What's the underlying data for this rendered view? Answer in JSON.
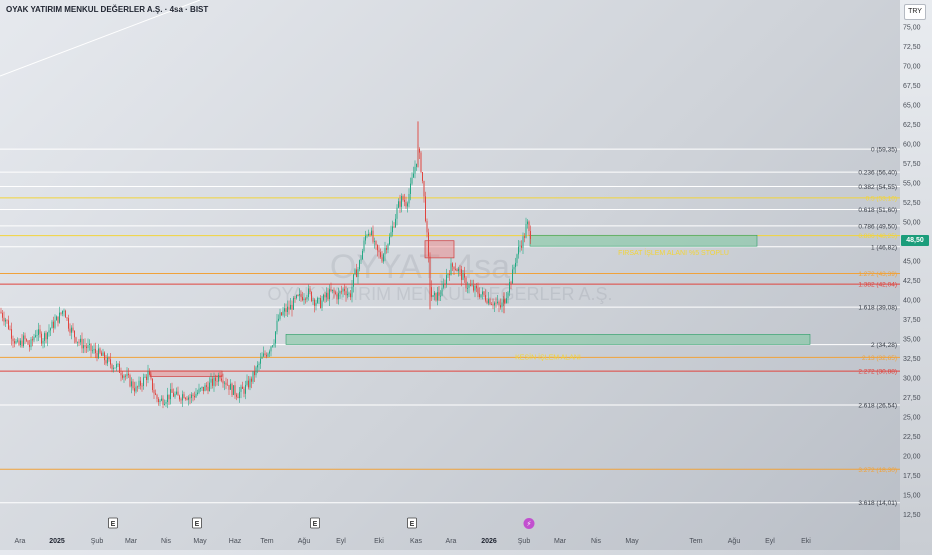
{
  "header": {
    "title": "OYAK YATIRIM MENKUL DEĞERLER A.Ş. · 4sa · BIST",
    "currency": "TRY"
  },
  "watermark": {
    "ticker": "OYYAT, 4sa",
    "company": "OYAK YATIRIM MENKUL DEĞERLER A.Ş."
  },
  "chart_data": {
    "type": "candlestick",
    "ylim": [
      12.5,
      77.5
    ],
    "y_ticks": [
      "75,00",
      "72,50",
      "70,00",
      "67,50",
      "65,00",
      "62,50",
      "60,00",
      "57,50",
      "55,00",
      "52,50",
      "50,00",
      "47,50",
      "45,00",
      "42,50",
      "40,00",
      "37,50",
      "35,00",
      "32,50",
      "30,00",
      "27,50",
      "25,00",
      "22,50",
      "20,00",
      "17,50",
      "15,00",
      "12,50"
    ],
    "x_ticks": [
      {
        "label": "Ara",
        "bold": false
      },
      {
        "label": "2025",
        "bold": true
      },
      {
        "label": "Şub",
        "bold": false
      },
      {
        "label": "Mar",
        "bold": false
      },
      {
        "label": "Nis",
        "bold": false
      },
      {
        "label": "May",
        "bold": false
      },
      {
        "label": "Haz",
        "bold": false
      },
      {
        "label": "Tem",
        "bold": false
      },
      {
        "label": "Ağu",
        "bold": false
      },
      {
        "label": "Eyl",
        "bold": false
      },
      {
        "label": "Eki",
        "bold": false
      },
      {
        "label": "Kas",
        "bold": false
      },
      {
        "label": "Ara",
        "bold": false
      },
      {
        "label": "2026",
        "bold": true
      },
      {
        "label": "Şub",
        "bold": false
      },
      {
        "label": "Mar",
        "bold": false
      },
      {
        "label": "Nis",
        "bold": false
      },
      {
        "label": "May",
        "bold": false
      },
      {
        "label": "Tem",
        "bold": false
      },
      {
        "label": "Ağu",
        "bold": false
      },
      {
        "label": "Eyl",
        "bold": false
      },
      {
        "label": "Eki",
        "bold": false
      }
    ],
    "last_price": "48,50",
    "price_path": [
      [
        0,
        38.5
      ],
      [
        6,
        37.5
      ],
      [
        12,
        35.5
      ],
      [
        18,
        34
      ],
      [
        24,
        35
      ],
      [
        30,
        34
      ],
      [
        36,
        36
      ],
      [
        42,
        35
      ],
      [
        48,
        36
      ],
      [
        54,
        37
      ],
      [
        60,
        38
      ],
      [
        64,
        39
      ],
      [
        68,
        37
      ],
      [
        74,
        35.5
      ],
      [
        80,
        34.5
      ],
      [
        86,
        34
      ],
      [
        92,
        33.5
      ],
      [
        100,
        33
      ],
      [
        108,
        32
      ],
      [
        116,
        31.5
      ],
      [
        124,
        30.5
      ],
      [
        130,
        29.5
      ],
      [
        136,
        28.5
      ],
      [
        142,
        29.5
      ],
      [
        148,
        30.5
      ],
      [
        152,
        29
      ],
      [
        156,
        27.5
      ],
      [
        160,
        27
      ],
      [
        166,
        27.5
      ],
      [
        172,
        28
      ],
      [
        178,
        27.5
      ],
      [
        184,
        28
      ],
      [
        190,
        27.5
      ],
      [
        196,
        28
      ],
      [
        202,
        28.5
      ],
      [
        208,
        29
      ],
      [
        214,
        29.5
      ],
      [
        220,
        30.5
      ],
      [
        226,
        29.5
      ],
      [
        232,
        28.5
      ],
      [
        238,
        28
      ],
      [
        244,
        28.5
      ],
      [
        250,
        29.5
      ],
      [
        256,
        31
      ],
      [
        262,
        32.5
      ],
      [
        268,
        33.5
      ],
      [
        274,
        35
      ],
      [
        278,
        37.5
      ],
      [
        284,
        38.5
      ],
      [
        290,
        39
      ],
      [
        296,
        40
      ],
      [
        302,
        40.5
      ],
      [
        308,
        41
      ],
      [
        314,
        40
      ],
      [
        320,
        39.5
      ],
      [
        326,
        40.5
      ],
      [
        332,
        41
      ],
      [
        338,
        40.5
      ],
      [
        344,
        41.5
      ],
      [
        350,
        40.5
      ],
      [
        354,
        43
      ],
      [
        358,
        44
      ],
      [
        362,
        46
      ],
      [
        366,
        48.5
      ],
      [
        370,
        49
      ],
      [
        374,
        47
      ],
      [
        378,
        46
      ],
      [
        382,
        45.5
      ],
      [
        386,
        47
      ],
      [
        390,
        48
      ],
      [
        394,
        50
      ],
      [
        398,
        52
      ],
      [
        402,
        53
      ],
      [
        406,
        52.5
      ],
      [
        410,
        54
      ],
      [
        414,
        56.5
      ],
      [
        418,
        59
      ],
      [
        420,
        58
      ],
      [
        422,
        56
      ],
      [
        424,
        53
      ],
      [
        426,
        50
      ],
      [
        428,
        46
      ],
      [
        430,
        42
      ],
      [
        432,
        40
      ],
      [
        436,
        40.5
      ],
      [
        442,
        41
      ],
      [
        446,
        43
      ],
      [
        450,
        44
      ],
      [
        454,
        44.5
      ],
      [
        460,
        43.5
      ],
      [
        466,
        42
      ],
      [
        472,
        41.5
      ],
      [
        478,
        41
      ],
      [
        484,
        40.5
      ],
      [
        490,
        40
      ],
      [
        496,
        39.5
      ],
      [
        500,
        39
      ],
      [
        504,
        39.8
      ],
      [
        508,
        41.5
      ],
      [
        512,
        43
      ],
      [
        516,
        45.5
      ],
      [
        520,
        47
      ],
      [
        524,
        48
      ],
      [
        527,
        50
      ],
      [
        529,
        48.5
      ],
      [
        531,
        48.5
      ]
    ],
    "spikes": [
      {
        "x": 418,
        "high": 62.9,
        "low": 57
      },
      {
        "x": 430,
        "high": 43,
        "low": 38.8
      },
      {
        "x": 504,
        "high": 41,
        "low": 38.3
      }
    ],
    "fib_levels": [
      {
        "label": "0 (59,35)",
        "price": 59.35,
        "color": "#ffffff"
      },
      {
        "label": "0.236 (56,40)",
        "price": 56.4,
        "color": "#ffffff"
      },
      {
        "label": "0.382 (54,55)",
        "price": 54.55,
        "color": "#ffffff"
      },
      {
        "label": "0.5 (53,10)",
        "price": 53.1,
        "color": "#f2d43a"
      },
      {
        "label": "0.618 (51,60)",
        "price": 51.6,
        "color": "#ffffff"
      },
      {
        "label": "0.786 (49,50)",
        "price": 49.5,
        "color": "#ffffff"
      },
      {
        "label": "0.886 (48,25)",
        "price": 48.25,
        "color": "#f2d43a"
      },
      {
        "label": "1 (46,82)",
        "price": 46.82,
        "color": "#ffffff"
      },
      {
        "label": "1.272 (43,39)",
        "price": 43.39,
        "color": "#f0a23a"
      },
      {
        "label": "1.382 (42,04)",
        "price": 42.04,
        "color": "#e0443e"
      },
      {
        "label": "1.618 (39,08)",
        "price": 39.08,
        "color": "#ffffff"
      },
      {
        "label": "2 (34,28)",
        "price": 34.28,
        "color": "#ffffff"
      },
      {
        "label": "2.13 (32,65)",
        "price": 32.65,
        "color": "#f0a23a"
      },
      {
        "label": "2.272 (30,88)",
        "price": 30.88,
        "color": "#e0443e"
      },
      {
        "label": "2.618 (26,54)",
        "price": 26.54,
        "color": "#ffffff"
      },
      {
        "label": "3.272 (18,30)",
        "price": 18.3,
        "color": "#f0a23a"
      },
      {
        "label": "3.618 (14,01)",
        "price": 14.01,
        "color": "#ffffff"
      }
    ],
    "zones": [
      {
        "label": "FIRSAT İŞLEM ALANI %5 STOPLU",
        "price_top": 48.3,
        "price_bottom": 46.9
      },
      {
        "label": "KESİN İŞLEM ALANI",
        "price_top": 35.6,
        "price_bottom": 34.3
      }
    ],
    "red_boxes": [
      {
        "price_top": 30.9,
        "price_bottom": 30.2
      },
      {
        "price_top": 47.6,
        "price_bottom": 45.4
      }
    ],
    "events": [
      "E",
      "E",
      "E",
      "E",
      "⚡"
    ]
  },
  "colors": {
    "up": "#22a884",
    "down": "#e0443e",
    "grid": "#ffffff",
    "zone_fill": "#7cc99e",
    "zone_text": "#f2d43a",
    "axis_text": "#4a4f58"
  }
}
